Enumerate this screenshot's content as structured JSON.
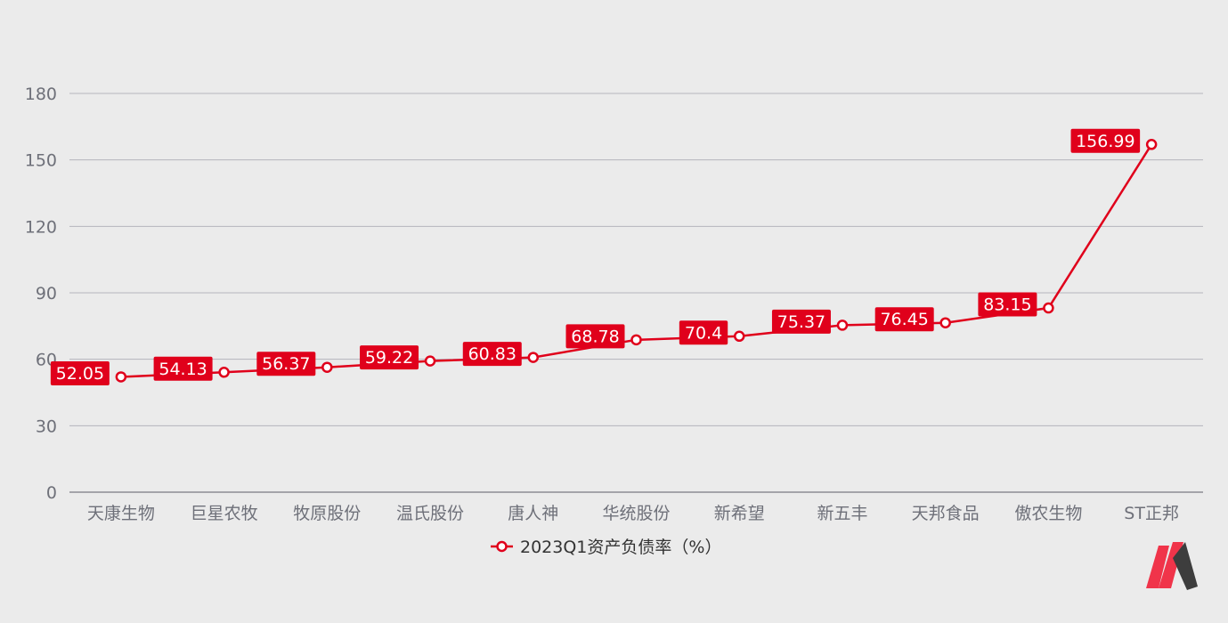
{
  "chart_data": {
    "type": "line",
    "categories": [
      "天康生物",
      "巨星农牧",
      "牧原股份",
      "温氏股份",
      "唐人神",
      "华统股份",
      "新希望",
      "新五丰",
      "天邦食品",
      "傲农生物",
      "ST正邦"
    ],
    "series": [
      {
        "name": "2023Q1资产负债率（%）",
        "values": [
          52.05,
          54.13,
          56.37,
          59.22,
          60.83,
          68.78,
          70.4,
          75.37,
          76.45,
          83.15,
          156.99
        ],
        "labels": [
          "52.05",
          "54.13",
          "56.37",
          "59.22",
          "60.83",
          "68.78",
          "70.4",
          "75.37",
          "76.45",
          "83.15",
          "156.99"
        ]
      }
    ],
    "ylim": [
      0,
      180
    ],
    "yticks": [
      "0",
      "30",
      "60",
      "90",
      "120",
      "150",
      "180"
    ],
    "grid": true,
    "legend_position": "bottom-center",
    "colors": {
      "series": "#e0001b",
      "label_bg": "#e0001b",
      "background": "#ebebeb"
    }
  },
  "logo": {
    "icon": "brand-logo-icon",
    "colors": [
      "#f0344a",
      "#3d3d3d"
    ]
  }
}
